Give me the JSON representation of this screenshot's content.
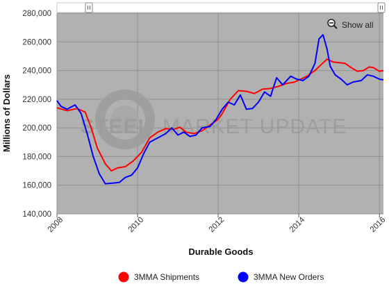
{
  "chart_data": {
    "type": "line",
    "title": "",
    "xlabel": "Durable Goods",
    "ylabel": "Millions of Dollars",
    "xlim": [
      2008,
      2016.1
    ],
    "ylim": [
      140000,
      280000
    ],
    "x_ticks": [
      "2008",
      "2010",
      "2012",
      "2014",
      "2016"
    ],
    "y_ticks": [
      "140,000",
      "160,000",
      "180,000",
      "200,000",
      "220,000",
      "240,000",
      "260,000",
      "280,000"
    ],
    "grid": true,
    "legend_position": "bottom",
    "series": [
      {
        "name": "3MMA Shipments",
        "color": "#ff0000",
        "points": [
          [
            2008.0,
            214000
          ],
          [
            2008.25,
            212000
          ],
          [
            2008.5,
            213500
          ],
          [
            2008.7,
            211000
          ],
          [
            2008.85,
            200000
          ],
          [
            2009.0,
            186000
          ],
          [
            2009.2,
            175000
          ],
          [
            2009.35,
            170000
          ],
          [
            2009.5,
            172000
          ],
          [
            2009.7,
            173000
          ],
          [
            2009.9,
            177000
          ],
          [
            2010.1,
            183000
          ],
          [
            2010.3,
            193000
          ],
          [
            2010.5,
            197000
          ],
          [
            2010.7,
            199500
          ],
          [
            2010.9,
            199000
          ],
          [
            2011.05,
            200500
          ],
          [
            2011.2,
            197000
          ],
          [
            2011.4,
            196000
          ],
          [
            2011.6,
            198000
          ],
          [
            2011.8,
            202000
          ],
          [
            2012.0,
            206000
          ],
          [
            2012.1,
            210000
          ],
          [
            2012.3,
            220000
          ],
          [
            2012.5,
            226000
          ],
          [
            2012.7,
            225500
          ],
          [
            2012.9,
            224000
          ],
          [
            2013.1,
            227000
          ],
          [
            2013.3,
            227500
          ],
          [
            2013.5,
            229000
          ],
          [
            2013.7,
            231000
          ],
          [
            2013.9,
            232000
          ],
          [
            2014.05,
            234000
          ],
          [
            2014.2,
            236000
          ],
          [
            2014.4,
            240000
          ],
          [
            2014.55,
            244000
          ],
          [
            2014.7,
            248000
          ],
          [
            2014.85,
            246000
          ],
          [
            2015.0,
            245500
          ],
          [
            2015.15,
            245000
          ],
          [
            2015.3,
            242000
          ],
          [
            2015.45,
            239500
          ],
          [
            2015.6,
            240000
          ],
          [
            2015.75,
            242500
          ],
          [
            2015.85,
            242000
          ],
          [
            2016.0,
            239500
          ],
          [
            2016.1,
            240000
          ]
        ]
      },
      {
        "name": "3MMA New Orders",
        "color": "#0000ff",
        "points": [
          [
            2008.0,
            219000
          ],
          [
            2008.1,
            215000
          ],
          [
            2008.25,
            213000
          ],
          [
            2008.45,
            216000
          ],
          [
            2008.6,
            210000
          ],
          [
            2008.75,
            196000
          ],
          [
            2008.9,
            180000
          ],
          [
            2009.05,
            168000
          ],
          [
            2009.2,
            161000
          ],
          [
            2009.4,
            161500
          ],
          [
            2009.55,
            162000
          ],
          [
            2009.7,
            165500
          ],
          [
            2009.85,
            167000
          ],
          [
            2010.0,
            172000
          ],
          [
            2010.15,
            182000
          ],
          [
            2010.3,
            190000
          ],
          [
            2010.5,
            193000
          ],
          [
            2010.7,
            196000
          ],
          [
            2010.85,
            200000
          ],
          [
            2011.0,
            195000
          ],
          [
            2011.15,
            197000
          ],
          [
            2011.3,
            194000
          ],
          [
            2011.45,
            195000
          ],
          [
            2011.6,
            200000
          ],
          [
            2011.8,
            201000
          ],
          [
            2011.95,
            206000
          ],
          [
            2012.1,
            213000
          ],
          [
            2012.25,
            218000
          ],
          [
            2012.4,
            216000
          ],
          [
            2012.55,
            223000
          ],
          [
            2012.7,
            213000
          ],
          [
            2012.85,
            213500
          ],
          [
            2013.0,
            218000
          ],
          [
            2013.15,
            225000
          ],
          [
            2013.3,
            222000
          ],
          [
            2013.45,
            235000
          ],
          [
            2013.6,
            230000
          ],
          [
            2013.8,
            236000
          ],
          [
            2013.95,
            234000
          ],
          [
            2014.1,
            233000
          ],
          [
            2014.25,
            236000
          ],
          [
            2014.4,
            245000
          ],
          [
            2014.5,
            262000
          ],
          [
            2014.6,
            265000
          ],
          [
            2014.7,
            255000
          ],
          [
            2014.78,
            243000
          ],
          [
            2014.9,
            237000
          ],
          [
            2015.05,
            234000
          ],
          [
            2015.2,
            230000
          ],
          [
            2015.35,
            232000
          ],
          [
            2015.55,
            233000
          ],
          [
            2015.7,
            237000
          ],
          [
            2015.85,
            236000
          ],
          [
            2016.0,
            234000
          ],
          [
            2016.1,
            233500
          ]
        ]
      }
    ]
  },
  "controls": {
    "show_all_label": "Show all"
  },
  "watermark": {
    "brand_bold": "STEEL",
    "brand_rest": "MARKET UPDATE"
  }
}
